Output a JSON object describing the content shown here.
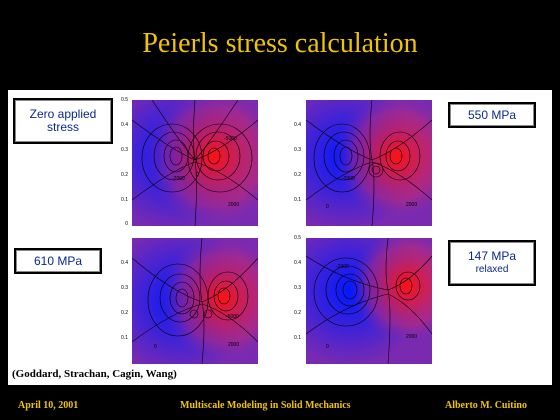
{
  "slide": {
    "title": "Peierls stress calculation",
    "credit": "(Goddard, Strachan, Cagin, Wang)"
  },
  "labels": {
    "zero_line1": "Zero applied",
    "zero_line2": "stress",
    "s550": "550 MPa",
    "s610": "610 MPa",
    "s147_line1": "147 MPa",
    "s147_line2": "relaxed"
  },
  "axis_ticks": [
    "0.5",
    "0.4",
    "0.3",
    "0.2",
    "0.1",
    "0"
  ],
  "contour_labels": {
    "tl": [
      "-2000",
      "0",
      "2000",
      "-5000"
    ],
    "tr": [
      "2000",
      "0",
      "-2000"
    ],
    "bl": [
      "2000",
      "0",
      "-5000"
    ],
    "br": [
      "-2000",
      "2000",
      "0"
    ]
  },
  "footer": {
    "date": "April 10, 2001",
    "course": "Multiscale Modeling in Solid Mechanics",
    "author": "Alberto M. Cuitino"
  },
  "colors": {
    "title": "#f0c400",
    "label_text": "#0a2a8a",
    "field_negative": "#1a2aff",
    "field_positive": "#ff2020",
    "field_mid": "#7a2ab0"
  }
}
